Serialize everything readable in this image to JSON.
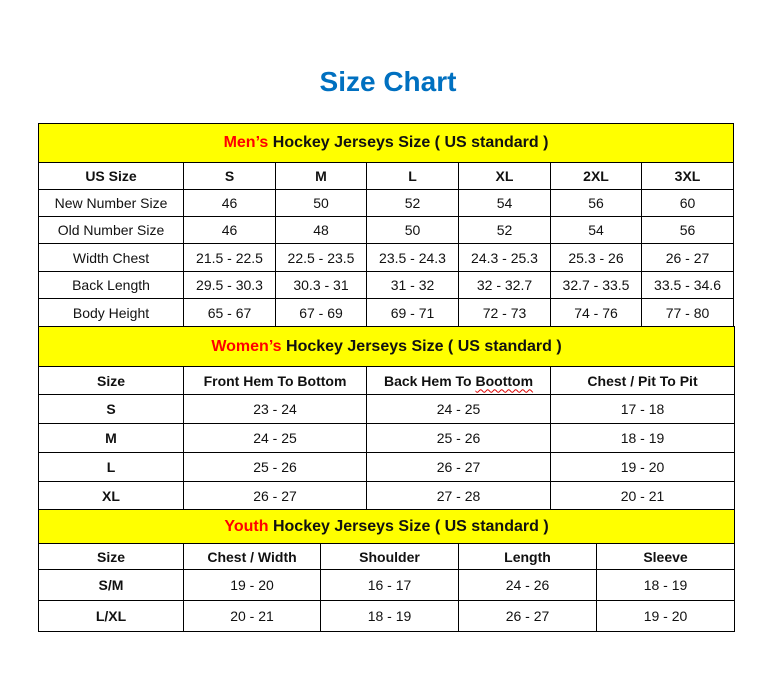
{
  "title": "Size Chart",
  "colors": {
    "title": "#0070C0",
    "header_bg": "#FFFF00",
    "highlight": "#FF0000"
  },
  "men": {
    "header_highlight": "Men’s",
    "header_rest": " Hockey Jerseys Size ( US standard )",
    "columns": [
      "US Size",
      "S",
      "M",
      "L",
      "XL",
      "2XL",
      "3XL"
    ],
    "rows": [
      [
        "New Number Size",
        "46",
        "50",
        "52",
        "54",
        "56",
        "60"
      ],
      [
        "Old Number Size",
        "46",
        "48",
        "50",
        "52",
        "54",
        "56"
      ],
      [
        "Width Chest",
        "21.5 - 22.5",
        "22.5 - 23.5",
        "23.5 - 24.3",
        "24.3 - 25.3",
        "25.3 - 26",
        "26 - 27"
      ],
      [
        "Back Length",
        "29.5 - 30.3",
        "30.3 - 31",
        "31 - 32",
        "32 - 32.7",
        "32.7 - 33.5",
        "33.5 - 34.6"
      ],
      [
        "Body Height",
        "65 - 67",
        "67 - 69",
        "69 - 71",
        "72 - 73",
        "74 - 76",
        "77 - 80"
      ]
    ]
  },
  "women": {
    "header_highlight": "Women’s",
    "header_rest": " Hockey Jerseys Size ( US standard )",
    "columns": [
      "Size",
      "Front Hem To Bottom",
      "Back Hem To Boottom",
      "Chest / Pit To Pit"
    ],
    "rows": [
      [
        "S",
        "23 - 24",
        "24 - 25",
        "17 - 18"
      ],
      [
        "M",
        "24 - 25",
        "25 - 26",
        "18 - 19"
      ],
      [
        "L",
        "25 - 26",
        "26 - 27",
        "19 - 20"
      ],
      [
        "XL",
        "26 - 27",
        "27 - 28",
        "20 - 21"
      ]
    ]
  },
  "youth": {
    "header_highlight": "Youth",
    "header_rest": " Hockey Jerseys Size ( US standard )",
    "columns": [
      "Size",
      "Chest / Width",
      "Shoulder",
      "Length",
      "Sleeve"
    ],
    "rows": [
      [
        "S/M",
        "19 - 20",
        "16 - 17",
        "24 - 26",
        "18 - 19"
      ],
      [
        "L/XL",
        "20 - 21",
        "18 - 19",
        "26 - 27",
        "19 - 20"
      ]
    ]
  }
}
